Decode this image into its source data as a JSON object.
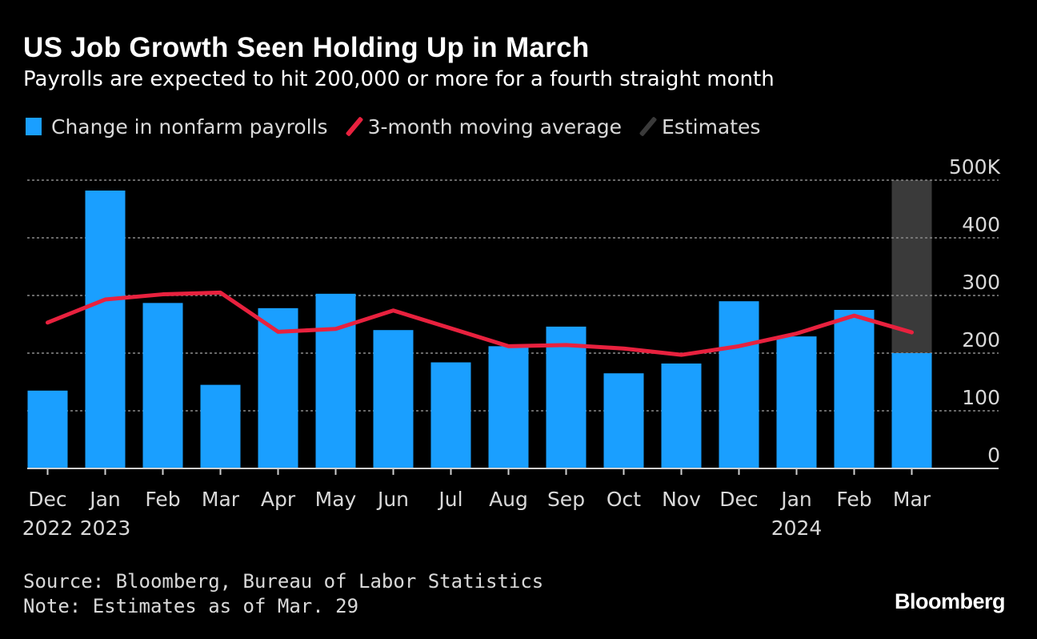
{
  "title": "US Job Growth Seen Holding Up in March",
  "subtitle": "Payrolls are expected to hit 200,000 or more for a fourth straight month",
  "legend": {
    "bars": "Change in nonfarm payrolls",
    "line": "3-month moving average",
    "estimates": "Estimates"
  },
  "source": "Source: Bloomberg, Bureau of Labor Statistics",
  "note": "Note: Estimates as of Mar. 29",
  "brand": "Bloomberg",
  "colors": {
    "bars": "#1a9fff",
    "line": "#e8213e",
    "estimates": "#3a3a3a",
    "background": "#000000",
    "grid": "#8a8a8a"
  },
  "chart_data": {
    "type": "bar",
    "categories": [
      "Dec",
      "Jan",
      "Feb",
      "Mar",
      "Apr",
      "May",
      "Jun",
      "Jul",
      "Aug",
      "Sep",
      "Oct",
      "Nov",
      "Dec",
      "Jan",
      "Feb",
      "Mar"
    ],
    "year_labels": [
      "2022",
      "2023",
      "",
      "",
      "",
      "",
      "",
      "",
      "",
      "",
      "",
      "",
      "",
      "2024",
      "",
      ""
    ],
    "series": [
      {
        "name": "Change in nonfarm payrolls",
        "type": "bar",
        "values": [
          135,
          482,
          287,
          145,
          278,
          303,
          240,
          184,
          212,
          246,
          165,
          182,
          290,
          229,
          275,
          200
        ]
      },
      {
        "name": "3-month moving average",
        "type": "line",
        "values": [
          253,
          293,
          302,
          305,
          237,
          242,
          274,
          243,
          212,
          214,
          208,
          197,
          212,
          234,
          265,
          236
        ]
      }
    ],
    "estimate_band": {
      "category_index": 15,
      "label": "Estimates"
    },
    "yticks": [
      0,
      100,
      200,
      300,
      400,
      500
    ],
    "ytick_labels": [
      "0",
      "100",
      "200",
      "300",
      "400",
      "500K"
    ],
    "ylim": [
      0,
      500
    ],
    "grid": true,
    "y_axis_side": "right",
    "legend_position": "top-left"
  }
}
